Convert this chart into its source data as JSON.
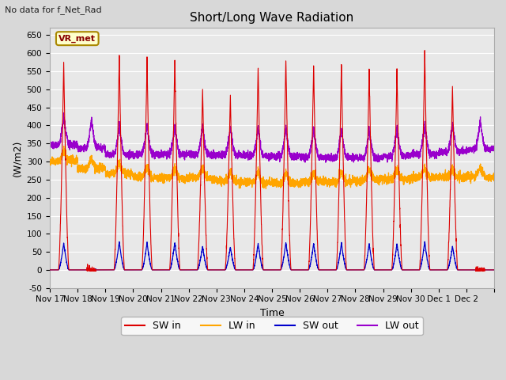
{
  "title": "Short/Long Wave Radiation",
  "xlabel": "Time",
  "ylabel": "(W/m2)",
  "top_label": "No data for f_Net_Rad",
  "station_label": "VR_met",
  "ylim": [
    -50,
    670
  ],
  "plot_bg_color": "#e8e8e8",
  "fig_bg_color": "#d8d8d8",
  "grid_color": "#ffffff",
  "sw_in_color": "#dd0000",
  "lw_in_color": "#ffa500",
  "sw_out_color": "#0000cc",
  "lw_out_color": "#9900cc",
  "num_days": 16,
  "x_tick_labels": [
    "Nov 17",
    "Nov 18",
    "Nov 19",
    "Nov 20",
    "Nov 21",
    "Nov 22",
    "Nov 23",
    "Nov 24",
    "Nov 25",
    "Nov 26",
    "Nov 27",
    "Nov 28",
    "Nov 29",
    "Nov 30",
    "Dec 1",
    "Dec 2"
  ],
  "legend_entries": [
    "SW in",
    "LW in",
    "SW out",
    "LW out"
  ],
  "sw_in_peaks": [
    575,
    0,
    600,
    585,
    585,
    500,
    490,
    565,
    585,
    565,
    570,
    560,
    555,
    610,
    510,
    0
  ],
  "lw_in_night": [
    300,
    275,
    260,
    250,
    250,
    255,
    250,
    250,
    248,
    248,
    245,
    245,
    245,
    248,
    250,
    255
  ],
  "lw_out_night": [
    345,
    335,
    315,
    315,
    315,
    315,
    315,
    315,
    315,
    315,
    315,
    315,
    320,
    325,
    330,
    335
  ]
}
